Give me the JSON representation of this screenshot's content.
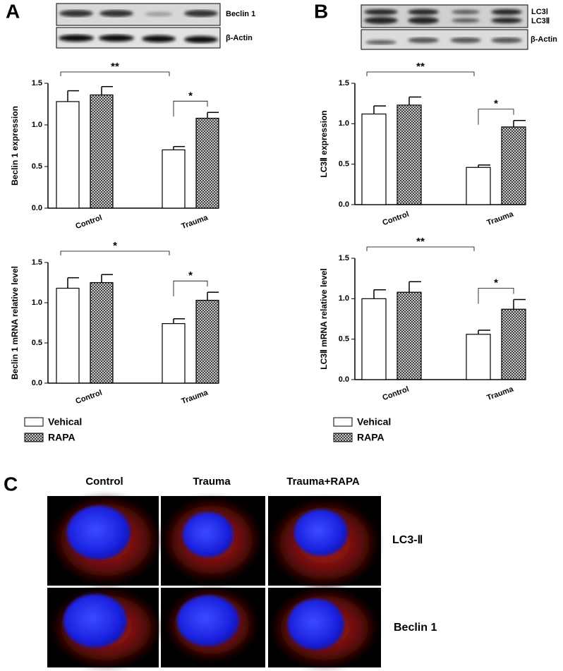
{
  "panels": {
    "a": "A",
    "b": "B",
    "c": "C"
  },
  "blots": {
    "a": {
      "labels": [
        "Beclin 1",
        "β-Actin"
      ]
    },
    "b": {
      "labels": [
        "LC3Ⅰ",
        "LC3Ⅱ",
        "β-Actin"
      ]
    }
  },
  "microscopy": {
    "columns": [
      "Control",
      "Trauma",
      "Trauma+RAPA"
    ],
    "rows": [
      "LC3-Ⅱ",
      "Beclin 1"
    ]
  },
  "chart_data": [
    {
      "type": "bar",
      "y_label": "Beclin 1 expression",
      "categories": [
        "Control",
        "Trauma"
      ],
      "series": [
        {
          "color": "#ffffff",
          "values": [
            1.28,
            0.7
          ],
          "errors": [
            0.13,
            0.04
          ]
        },
        {
          "color": "#555555",
          "pattern": "crosshatch",
          "values": [
            1.36,
            1.08
          ],
          "errors": [
            0.1,
            0.07
          ]
        }
      ],
      "ylim": [
        0,
        1.5
      ],
      "yticks": [
        {
          "value": 0,
          "label": "0.0"
        },
        0.5,
        {
          "value": 1,
          "label": "1.0"
        },
        1.5
      ],
      "annotations": [
        "**",
        "*"
      ]
    },
    {
      "type": "bar",
      "y_label": "Beclin 1 mRNA relative level",
      "categories": [
        "Control",
        "Trauma"
      ],
      "series": [
        {
          "name": "Vehical",
          "color": "#ffffff",
          "values": [
            1.18,
            0.74
          ],
          "errors": [
            0.13,
            0.06
          ]
        },
        {
          "name": "RAPA",
          "color": "#555555",
          "pattern": "crosshatch",
          "values": [
            1.25,
            1.03
          ],
          "errors": [
            0.1,
            0.1
          ]
        }
      ],
      "ylim": [
        0,
        1.5
      ],
      "yticks": [
        {
          "value": 0,
          "label": "0.0"
        },
        0.5,
        {
          "value": 1,
          "label": "1.0"
        },
        1.5
      ],
      "annotations": [
        "*",
        "*"
      ]
    },
    {
      "type": "bar",
      "y_label": "LC3Ⅱ  expression",
      "categories": [
        "Control",
        "Trauma"
      ],
      "series": [
        {
          "color": "#ffffff",
          "values": [
            1.12,
            0.46
          ],
          "errors": [
            0.1,
            0.03
          ]
        },
        {
          "color": "#555555",
          "pattern": "crosshatch",
          "values": [
            1.23,
            0.96
          ],
          "errors": [
            0.1,
            0.08
          ]
        }
      ],
      "ylim": [
        0,
        1.5
      ],
      "yticks": [
        {
          "value": 0,
          "label": "0.0"
        },
        0.5,
        {
          "value": 1,
          "label": "1.0"
        },
        1.5
      ],
      "annotations": [
        "**",
        "*"
      ]
    },
    {
      "type": "bar",
      "y_label": "LC3Ⅱ  mRNA relative level",
      "categories": [
        "Control",
        "Trauma"
      ],
      "series": [
        {
          "name": "Vehical",
          "color": "#ffffff",
          "values": [
            1.0,
            0.56
          ],
          "errors": [
            0.11,
            0.05
          ]
        },
        {
          "name": "RAPA",
          "color": "#555555",
          "pattern": "crosshatch",
          "values": [
            1.08,
            0.87
          ],
          "errors": [
            0.13,
            0.12
          ]
        }
      ],
      "ylim": [
        0,
        1.5
      ],
      "yticks": [
        {
          "value": 0,
          "label": "0.0"
        },
        0.5,
        {
          "value": 1,
          "label": "1.0"
        },
        1.5
      ],
      "annotations": [
        "**",
        "*"
      ]
    }
  ]
}
